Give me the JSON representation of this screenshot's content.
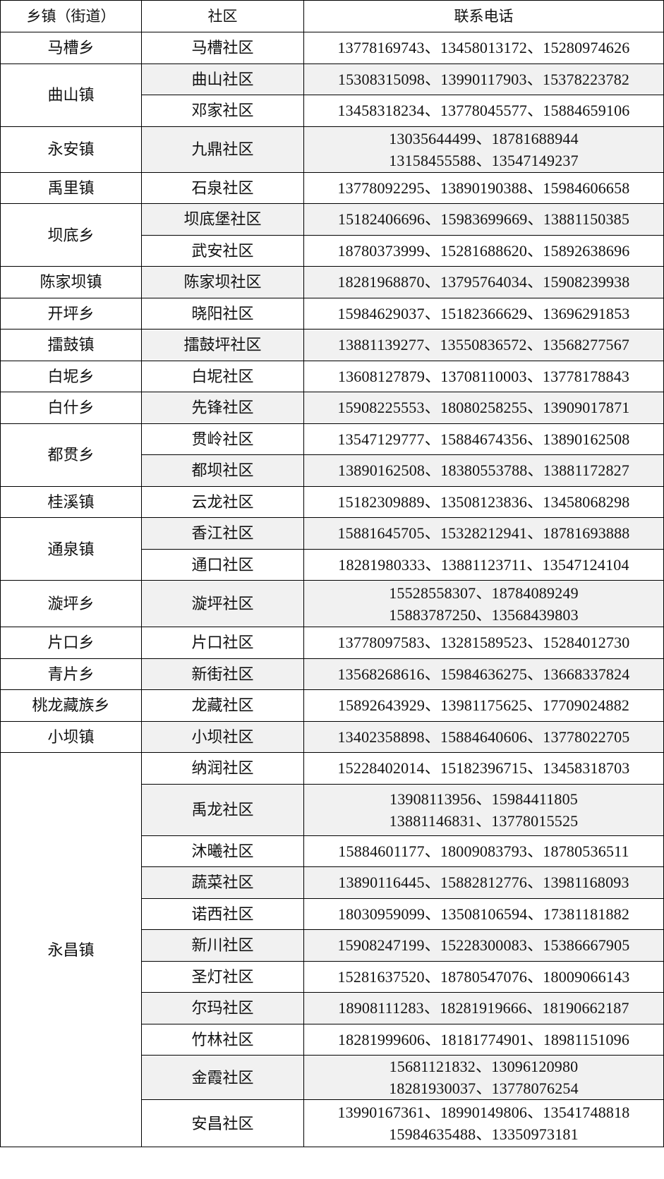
{
  "table": {
    "headers": [
      "乡镇（街道）",
      "社区",
      "联系电话"
    ],
    "separator": "、",
    "towns": [
      {
        "name": "马槽乡",
        "communities": [
          {
            "name": "马槽社区",
            "phones": [
              [
                "13778169743",
                "13458013172",
                "15280974626"
              ]
            ]
          }
        ]
      },
      {
        "name": "曲山镇",
        "communities": [
          {
            "name": "曲山社区",
            "phones": [
              [
                "15308315098",
                "13990117903",
                "15378223782"
              ]
            ]
          },
          {
            "name": "邓家社区",
            "phones": [
              [
                "13458318234",
                "13778045577",
                "15884659106"
              ]
            ]
          }
        ]
      },
      {
        "name": "永安镇",
        "communities": [
          {
            "name": "九鼎社区",
            "phones": [
              [
                "13035644499",
                "18781688944"
              ],
              [
                "13158455588",
                "13547149237"
              ]
            ]
          }
        ]
      },
      {
        "name": "禹里镇",
        "communities": [
          {
            "name": "石泉社区",
            "phones": [
              [
                "13778092295",
                "13890190388",
                "15984606658"
              ]
            ]
          }
        ]
      },
      {
        "name": "坝底乡",
        "communities": [
          {
            "name": "坝底堡社区",
            "phones": [
              [
                "15182406696",
                "15983699669",
                "13881150385"
              ]
            ]
          },
          {
            "name": "武安社区",
            "phones": [
              [
                "18780373999",
                "15281688620",
                "15892638696"
              ]
            ]
          }
        ]
      },
      {
        "name": "陈家坝镇",
        "communities": [
          {
            "name": "陈家坝社区",
            "phones": [
              [
                "18281968870",
                "13795764034",
                "15908239938"
              ]
            ]
          }
        ]
      },
      {
        "name": "开坪乡",
        "communities": [
          {
            "name": "晓阳社区",
            "phones": [
              [
                "15984629037",
                "15182366629",
                "13696291853"
              ]
            ]
          }
        ]
      },
      {
        "name": "擂鼓镇",
        "communities": [
          {
            "name": "擂鼓坪社区",
            "phones": [
              [
                "13881139277",
                "13550836572",
                "13568277567"
              ]
            ]
          }
        ]
      },
      {
        "name": "白坭乡",
        "communities": [
          {
            "name": "白坭社区",
            "phones": [
              [
                "13608127879",
                "13708110003",
                "13778178843"
              ]
            ]
          }
        ]
      },
      {
        "name": "白什乡",
        "communities": [
          {
            "name": "先锋社区",
            "phones": [
              [
                "15908225553",
                "18080258255",
                "13909017871"
              ]
            ]
          }
        ]
      },
      {
        "name": "都贯乡",
        "communities": [
          {
            "name": "贯岭社区",
            "phones": [
              [
                "13547129777",
                "15884674356",
                "13890162508"
              ]
            ]
          },
          {
            "name": "都坝社区",
            "phones": [
              [
                "13890162508",
                "18380553788",
                "13881172827"
              ]
            ]
          }
        ]
      },
      {
        "name": "桂溪镇",
        "communities": [
          {
            "name": "云龙社区",
            "phones": [
              [
                "15182309889",
                "13508123836",
                "13458068298"
              ]
            ]
          }
        ]
      },
      {
        "name": "通泉镇",
        "communities": [
          {
            "name": "香江社区",
            "phones": [
              [
                "15881645705",
                "15328212941",
                "18781693888"
              ]
            ]
          },
          {
            "name": "通口社区",
            "phones": [
              [
                "18281980333",
                "13881123711",
                "13547124104"
              ]
            ]
          }
        ]
      },
      {
        "name": "漩坪乡",
        "communities": [
          {
            "name": "漩坪社区",
            "phones": [
              [
                "15528558307",
                "18784089249"
              ],
              [
                "15883787250",
                "13568439803"
              ]
            ]
          }
        ]
      },
      {
        "name": "片口乡",
        "communities": [
          {
            "name": "片口社区",
            "phones": [
              [
                "13778097583",
                "13281589523",
                "15284012730"
              ]
            ]
          }
        ]
      },
      {
        "name": "青片乡",
        "communities": [
          {
            "name": "新街社区",
            "phones": [
              [
                "13568268616",
                "15984636275",
                "13668337824"
              ]
            ]
          }
        ]
      },
      {
        "name": "桃龙藏族乡",
        "communities": [
          {
            "name": "龙藏社区",
            "phones": [
              [
                "15892643929",
                "13981175625",
                "17709024882"
              ]
            ]
          }
        ]
      },
      {
        "name": "小坝镇",
        "communities": [
          {
            "name": "小坝社区",
            "phones": [
              [
                "13402358898",
                "15884640606",
                "13778022705"
              ]
            ]
          }
        ]
      },
      {
        "name": "永昌镇",
        "communities": [
          {
            "name": "纳润社区",
            "phones": [
              [
                "15228402014",
                "15182396715",
                "13458318703"
              ]
            ]
          },
          {
            "name": "禹龙社区",
            "phones": [
              [
                "13908113956",
                "15984411805"
              ],
              [
                "13881146831",
                "13778015525"
              ]
            ]
          },
          {
            "name": "沐曦社区",
            "phones": [
              [
                "15884601177",
                "18009083793",
                "18780536511"
              ]
            ]
          },
          {
            "name": "蔬菜社区",
            "phones": [
              [
                "13890116445",
                "15882812776",
                "13981168093"
              ]
            ]
          },
          {
            "name": "诺西社区",
            "phones": [
              [
                "18030959099",
                "13508106594",
                "17381181882"
              ]
            ]
          },
          {
            "name": "新川社区",
            "phones": [
              [
                "15908247199",
                "15228300083",
                "15386667905"
              ]
            ]
          },
          {
            "name": "圣灯社区",
            "phones": [
              [
                "15281637520",
                "18780547076",
                "18009066143"
              ]
            ]
          },
          {
            "name": "尔玛社区",
            "phones": [
              [
                "18908111283",
                "18281919666",
                "18190662187"
              ]
            ]
          },
          {
            "name": "竹林社区",
            "phones": [
              [
                "18281999606",
                "18181774901",
                "18981151096"
              ]
            ]
          },
          {
            "name": "金霞社区",
            "phones": [
              [
                "15681121832",
                "13096120980"
              ],
              [
                "18281930037",
                "13778076254"
              ]
            ]
          },
          {
            "name": "安昌社区",
            "phones": [
              [
                "13990167361",
                "18990149806",
                "13541748818"
              ],
              [
                "15984635488",
                "13350973181"
              ]
            ]
          }
        ]
      }
    ]
  },
  "colors": {
    "border": "#000000",
    "stripe": "#f1f1f1"
  }
}
